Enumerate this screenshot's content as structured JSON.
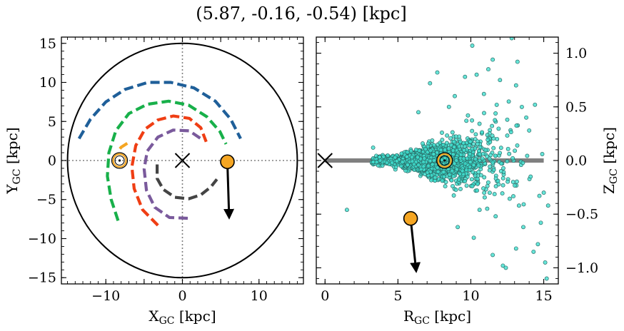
{
  "figure": {
    "title": "(5.87, -0.16, -0.54) [kpc]"
  },
  "chart_data": [
    {
      "type": "scatter",
      "panel": "left",
      "xlabel": "X_GC [kpc]",
      "ylabel": "Y_GC [kpc]",
      "xlim": [
        -15.8,
        15.8
      ],
      "ylim": [
        -15.8,
        15.8
      ],
      "xticks": [
        -10,
        -5,
        0,
        5,
        10
      ],
      "yticks": [
        -15,
        -10,
        -5,
        0,
        5,
        10,
        15
      ],
      "xtick_labels": [
        "−10",
        "",
        "0",
        "",
        "10"
      ],
      "ytick_labels": [
        "−15",
        "−10",
        "−5",
        "0",
        "5",
        "10",
        "15"
      ],
      "grid": false,
      "boundary_circle": {
        "radius": 15,
        "color": "#000000"
      },
      "reference_lines": {
        "x": 0,
        "y": 0,
        "style": "dotted",
        "color": "#808080"
      },
      "galactic_center": {
        "x": 0,
        "y": 0,
        "marker": "x"
      },
      "sun": {
        "x": -8.2,
        "y": 0,
        "marker": "sun-symbol",
        "color": "#f5a623"
      },
      "target": {
        "x": 5.87,
        "y": -0.16,
        "color": "#f5a623"
      },
      "velocity_arrow": {
        "from": [
          5.87,
          -0.16
        ],
        "to": [
          6.1,
          -7.3
        ]
      },
      "spiral_arms": [
        {
          "color": "#1f5f99",
          "points": [
            [
              -13.5,
              2.8
            ],
            [
              -12,
              5.3
            ],
            [
              -10,
              7.5
            ],
            [
              -7.5,
              9.1
            ],
            [
              -4.5,
              10
            ],
            [
              -1.5,
              10
            ],
            [
              1.5,
              9.3
            ],
            [
              4.3,
              7.6
            ],
            [
              6.3,
              5.3
            ],
            [
              7.6,
              2.8
            ]
          ]
        },
        {
          "color": "#18b04a",
          "points": [
            [
              -8.4,
              -7.7
            ],
            [
              -9.3,
              -5
            ],
            [
              -9.8,
              -2
            ],
            [
              -9.6,
              1
            ],
            [
              -8.7,
              3.8
            ],
            [
              -7,
              6
            ],
            [
              -4.6,
              7.2
            ],
            [
              -1.8,
              7.6
            ],
            [
              0.8,
              7.1
            ],
            [
              3.2,
              5.6
            ],
            [
              4.9,
              3.7
            ],
            [
              5.7,
              2.1
            ]
          ]
        },
        {
          "color": "#ef3e14",
          "points": [
            [
              -3.2,
              -8.3
            ],
            [
              -5.2,
              -6.3
            ],
            [
              -6.3,
              -3.6
            ],
            [
              -6.6,
              -0.8
            ],
            [
              -6.1,
              1.9
            ],
            [
              -4.9,
              4
            ],
            [
              -3.2,
              5.2
            ],
            [
              -1.2,
              5.7
            ],
            [
              0.9,
              5.4
            ],
            [
              2.4,
              4.2
            ],
            [
              3.1,
              2.4
            ]
          ]
        },
        {
          "color": "#7a5a9c",
          "points": [
            [
              0.7,
              -7.4
            ],
            [
              -1.7,
              -7.3
            ],
            [
              -3.6,
              -6
            ],
            [
              -4.7,
              -3.8
            ],
            [
              -5,
              -1.1
            ],
            [
              -4.6,
              1.2
            ],
            [
              -3.2,
              3
            ],
            [
              -1.2,
              3.9
            ],
            [
              0.9,
              3.8
            ],
            [
              2.4,
              2.8
            ]
          ]
        },
        {
          "color": "#444444",
          "points": [
            [
              -3.3,
              -0.5
            ],
            [
              -3.3,
              -2.3
            ],
            [
              -2.5,
              -3.7
            ],
            [
              -1,
              -4.7
            ],
            [
              0.8,
              -4.9
            ],
            [
              2.4,
              -4.4
            ],
            [
              3.7,
              -3.4
            ],
            [
              4.5,
              -2.4
            ]
          ]
        },
        {
          "color": "#f5a623",
          "points": [
            [
              -7.2,
              2.2
            ],
            [
              -8,
              1.7
            ],
            [
              -8.5,
              1.1
            ]
          ]
        }
      ]
    },
    {
      "type": "scatter",
      "panel": "right",
      "xlabel": "R_GC [kpc]",
      "ylabel": "Z_GC [kpc]",
      "xlim": [
        -0.6,
        16
      ],
      "ylim": [
        -1.15,
        1.15
      ],
      "xticks": [
        0,
        5,
        10,
        15
      ],
      "yticks": [
        -1.0,
        -0.5,
        0.0,
        0.5,
        1.0
      ],
      "xtick_labels": [
        "0",
        "5",
        "10",
        "15"
      ],
      "ytick_labels": [
        "−1.0",
        "−0.5",
        "0.0",
        "0.5",
        "1.0"
      ],
      "ylabel_side": "right",
      "grid": false,
      "disk_line": {
        "y": 0,
        "x_range": [
          0,
          15
        ],
        "color": "#808080"
      },
      "galactic_center": {
        "x": 0,
        "y": 0,
        "marker": "x"
      },
      "sun": {
        "x": 8.2,
        "y": 0,
        "marker": "sun-symbol",
        "color": "#f5a623"
      },
      "target": {
        "x": 5.87,
        "y": -0.54,
        "color": "#f5a623"
      },
      "velocity_arrow": {
        "from": [
          5.87,
          -0.54
        ],
        "to": [
          6.25,
          -1.03
        ]
      },
      "stars": {
        "color": "#40e0d0",
        "edge": "#2a6b66",
        "count": 2000,
        "marker": "circle"
      },
      "outliers": [
        [
          10.1,
          1.07
        ],
        [
          11.5,
          0.94
        ],
        [
          12.8,
          1.14
        ],
        [
          10.4,
          0.8
        ],
        [
          11.2,
          0.85
        ],
        [
          12,
          0.75
        ],
        [
          13.1,
          0.7
        ],
        [
          14.4,
          0.52
        ],
        [
          7.7,
          0.82
        ],
        [
          8.9,
          0.6
        ],
        [
          6.4,
          0.45
        ],
        [
          7.2,
          0.72
        ],
        [
          9.6,
          0.78
        ],
        [
          13.6,
          -0.62
        ],
        [
          14.3,
          -0.85
        ],
        [
          13.1,
          -0.82
        ],
        [
          14.6,
          -0.78
        ],
        [
          12.2,
          -0.98
        ],
        [
          15.1,
          -0.95
        ],
        [
          15.2,
          -1.1
        ],
        [
          11.5,
          -0.88
        ],
        [
          12.4,
          -1.0
        ],
        [
          10.2,
          -0.72
        ],
        [
          14.8,
          -0.58
        ],
        [
          9.1,
          -0.62
        ],
        [
          1.5,
          -0.46
        ],
        [
          3.3,
          0.12
        ],
        [
          13.8,
          0.4
        ],
        [
          12.6,
          0.55
        ],
        [
          8.5,
          0.5
        ],
        [
          14.9,
          0.06
        ],
        [
          15,
          -0.3
        ],
        [
          14.7,
          -0.33
        ],
        [
          13.3,
          -0.42
        ],
        [
          12.9,
          -0.2
        ],
        [
          11.7,
          -0.52
        ],
        [
          10.6,
          -0.46
        ],
        [
          10.9,
          0.62
        ],
        [
          9.8,
          0.42
        ],
        [
          13.2,
          0.92
        ],
        [
          14,
          0.28
        ],
        [
          15.3,
          -0.42
        ],
        [
          14.1,
          -0.15
        ],
        [
          12.5,
          0.38
        ]
      ]
    }
  ]
}
